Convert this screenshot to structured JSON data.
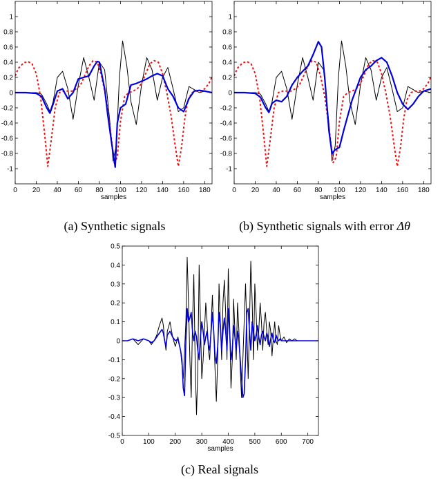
{
  "figure": {
    "panels": [
      {
        "id": "a",
        "caption": "(a) Synthetic signals"
      },
      {
        "id": "b",
        "caption_text": "(b) Synthetic signals with error ",
        "caption_symbol": "Δθ"
      },
      {
        "id": "c",
        "caption": "(c) Real signals"
      }
    ]
  },
  "colors": {
    "black": "#000000",
    "blue": "#0000dd",
    "red": "#ee1111"
  },
  "chart_data": [
    {
      "type": "line",
      "panel": "a",
      "xlabel": "samples",
      "ylabel": "",
      "xlim": [
        0,
        187
      ],
      "ylim": [
        -1.2,
        1.2
      ],
      "xticks": [
        0,
        20,
        40,
        60,
        80,
        100,
        120,
        140,
        160,
        180
      ],
      "yticks": [
        -1,
        -0.8,
        -0.6,
        -0.4,
        -0.2,
        0,
        0.2,
        0.4,
        0.6,
        0.8,
        1
      ],
      "series": [
        {
          "color": "black",
          "width": 1,
          "dash": "",
          "x": [
            0,
            10,
            20,
            25,
            30,
            33,
            36,
            40,
            45,
            50,
            55,
            60,
            65,
            70,
            75,
            80,
            85,
            90,
            93,
            96,
            99,
            102,
            106,
            110,
            115,
            120,
            125,
            130,
            135,
            140,
            145,
            150,
            155,
            160,
            165,
            170,
            175,
            180,
            187
          ],
          "y": [
            0,
            0,
            0,
            -0.02,
            -0.15,
            -0.25,
            -0.12,
            0.2,
            0.28,
            0.05,
            -0.35,
            0.1,
            0.46,
            0.2,
            -0.1,
            0.4,
            0.3,
            -0.4,
            -0.9,
            -0.7,
            0.2,
            0.68,
            0.35,
            -0.12,
            -0.42,
            0.1,
            0.46,
            0.3,
            -0.1,
            0.2,
            0.33,
            0.05,
            -0.25,
            -0.2,
            0.08,
            0.04,
            0,
            0.02,
            0
          ]
        },
        {
          "color": "red",
          "width": 2,
          "dash": "3,3",
          "x": [
            0,
            3,
            8,
            12,
            16,
            20,
            24,
            28,
            31,
            34,
            38,
            42,
            46,
            50,
            54,
            58,
            62,
            66,
            70,
            74,
            78,
            82,
            86,
            90,
            94,
            97,
            100,
            104,
            108,
            112,
            116,
            120,
            124,
            128,
            132,
            136,
            140,
            144,
            148,
            152,
            155,
            158,
            161,
            164,
            168,
            172,
            176,
            180,
            184,
            187
          ],
          "y": [
            0.22,
            0.32,
            0.39,
            0.41,
            0.38,
            0.25,
            -0.05,
            -0.55,
            -0.97,
            -0.65,
            -0.2,
            0,
            0.02,
            0.02,
            0.02,
            0.05,
            0.1,
            0.22,
            0.35,
            0.42,
            0.4,
            0.22,
            -0.05,
            -0.45,
            -0.92,
            -0.85,
            -0.38,
            -0.05,
            0,
            0.02,
            0.05,
            0.12,
            0.25,
            0.38,
            0.42,
            0.4,
            0.25,
            0,
            -0.3,
            -0.7,
            -0.97,
            -0.72,
            -0.35,
            -0.1,
            0,
            0.02,
            0.02,
            0.05,
            0.12,
            0.21
          ]
        },
        {
          "color": "blue",
          "width": 2.2,
          "dash": "",
          "x": [
            0,
            10,
            20,
            25,
            30,
            33,
            36,
            40,
            45,
            50,
            55,
            60,
            65,
            70,
            75,
            78,
            80,
            85,
            88,
            92,
            95,
            97,
            100,
            105,
            110,
            115,
            120,
            125,
            130,
            135,
            140,
            145,
            150,
            155,
            160,
            165,
            170,
            175,
            180,
            187
          ],
          "y": [
            0,
            0,
            -0.01,
            -0.05,
            -0.2,
            -0.27,
            -0.15,
            0.02,
            0.05,
            -0.08,
            0,
            0.18,
            0.2,
            0.22,
            0.35,
            0.41,
            0.4,
            0.05,
            -0.3,
            -0.7,
            -0.98,
            -0.4,
            -0.2,
            -0.15,
            0.1,
            0.12,
            0.15,
            0.18,
            0.22,
            0.25,
            0.22,
            0.05,
            -0.05,
            -0.2,
            -0.25,
            -0.08,
            0.02,
            0.03,
            0.02,
            0
          ]
        }
      ]
    },
    {
      "type": "line",
      "panel": "b",
      "xlabel": "samples",
      "ylabel": "",
      "xlim": [
        0,
        187
      ],
      "ylim": [
        -1.2,
        1.2
      ],
      "xticks": [
        0,
        20,
        40,
        60,
        80,
        100,
        120,
        140,
        160,
        180
      ],
      "yticks": [
        -1,
        -0.8,
        -0.6,
        -0.4,
        -0.2,
        0,
        0.2,
        0.4,
        0.6,
        0.8,
        1
      ],
      "series": [
        {
          "color": "black",
          "width": 1,
          "dash": "",
          "x": [
            0,
            10,
            20,
            25,
            30,
            33,
            36,
            40,
            45,
            50,
            55,
            60,
            65,
            70,
            75,
            80,
            85,
            90,
            93,
            96,
            99,
            102,
            106,
            110,
            115,
            120,
            125,
            130,
            135,
            140,
            145,
            150,
            155,
            160,
            165,
            170,
            175,
            180,
            187
          ],
          "y": [
            0,
            0,
            0,
            -0.02,
            -0.15,
            -0.25,
            -0.12,
            0.2,
            0.28,
            0.05,
            -0.35,
            0.1,
            0.46,
            0.2,
            -0.1,
            0.4,
            0.3,
            -0.4,
            -0.9,
            -0.7,
            0.2,
            0.68,
            0.35,
            -0.12,
            -0.42,
            0.1,
            0.46,
            0.3,
            -0.1,
            0.2,
            0.33,
            0.05,
            -0.25,
            -0.2,
            0.08,
            0.04,
            0,
            0.02,
            0
          ]
        },
        {
          "color": "red",
          "width": 2,
          "dash": "3,3",
          "x": [
            0,
            3,
            8,
            12,
            16,
            20,
            24,
            28,
            31,
            34,
            38,
            42,
            46,
            50,
            54,
            58,
            62,
            66,
            70,
            74,
            78,
            82,
            86,
            90,
            94,
            97,
            100,
            104,
            108,
            112,
            116,
            120,
            124,
            128,
            132,
            136,
            140,
            144,
            148,
            152,
            155,
            158,
            161,
            164,
            168,
            172,
            176,
            180,
            184,
            187
          ],
          "y": [
            0.22,
            0.32,
            0.39,
            0.41,
            0.38,
            0.25,
            -0.05,
            -0.55,
            -0.97,
            -0.65,
            -0.2,
            0,
            0.02,
            0.02,
            0.02,
            0.05,
            0.1,
            0.22,
            0.35,
            0.42,
            0.4,
            0.22,
            -0.05,
            -0.45,
            -0.92,
            -0.85,
            -0.38,
            -0.05,
            0,
            0.02,
            0.05,
            0.12,
            0.25,
            0.38,
            0.42,
            0.4,
            0.25,
            0,
            -0.3,
            -0.7,
            -0.97,
            -0.72,
            -0.35,
            -0.1,
            0,
            0.02,
            0.02,
            0.05,
            0.12,
            0.21
          ]
        },
        {
          "color": "blue",
          "width": 2.2,
          "dash": "",
          "x": [
            0,
            10,
            20,
            25,
            30,
            33,
            36,
            40,
            45,
            50,
            55,
            60,
            65,
            70,
            75,
            80,
            83,
            86,
            90,
            93,
            96,
            100,
            104,
            108,
            112,
            116,
            120,
            125,
            130,
            135,
            140,
            145,
            150,
            155,
            160,
            165,
            170,
            175,
            180,
            187
          ],
          "y": [
            0,
            0,
            -0.01,
            -0.06,
            -0.2,
            -0.26,
            -0.14,
            -0.1,
            -0.12,
            -0.05,
            0.1,
            0.2,
            0.28,
            0.35,
            0.5,
            0.67,
            0.6,
            0.2,
            -0.5,
            -0.8,
            -0.75,
            -0.72,
            -0.5,
            -0.3,
            -0.1,
            0.05,
            0.2,
            0.3,
            0.35,
            0.42,
            0.46,
            0.4,
            0.22,
            0,
            -0.15,
            -0.22,
            -0.15,
            -0.05,
            0.02,
            0.05
          ]
        }
      ]
    },
    {
      "type": "line",
      "panel": "c",
      "xlabel": "samples",
      "ylabel": "",
      "xlim": [
        0,
        740
      ],
      "ylim": [
        -0.5,
        0.5
      ],
      "xticks": [
        0,
        100,
        200,
        300,
        400,
        500,
        600,
        700
      ],
      "yticks": [
        -0.5,
        -0.4,
        -0.3,
        -0.2,
        -0.1,
        0,
        0.1,
        0.2,
        0.3,
        0.4,
        0.5
      ],
      "series": [
        {
          "color": "black",
          "width": 1,
          "dash": "",
          "x": [
            0,
            20,
            40,
            60,
            80,
            100,
            110,
            120,
            130,
            140,
            150,
            155,
            160,
            165,
            170,
            180,
            190,
            200,
            210,
            220,
            230,
            240,
            245,
            250,
            255,
            260,
            265,
            270,
            275,
            280,
            285,
            290,
            295,
            300,
            305,
            310,
            315,
            320,
            325,
            330,
            335,
            340,
            345,
            350,
            355,
            360,
            365,
            370,
            375,
            380,
            385,
            390,
            395,
            400,
            405,
            410,
            415,
            420,
            425,
            430,
            435,
            440,
            445,
            450,
            455,
            460,
            465,
            470,
            475,
            480,
            485,
            490,
            495,
            500,
            505,
            510,
            515,
            520,
            525,
            530,
            535,
            540,
            545,
            550,
            555,
            560,
            565,
            570,
            575,
            580,
            585,
            590,
            595,
            600,
            610,
            620,
            630,
            640,
            650,
            660,
            670,
            680,
            690,
            700,
            710,
            720,
            730,
            740
          ],
          "y": [
            0,
            0,
            0.01,
            -0.02,
            0.01,
            0,
            -0.02,
            0,
            0.03,
            0.08,
            0.12,
            0.08,
            0,
            -0.05,
            0.05,
            0.1,
            0.02,
            -0.03,
            0.02,
            -0.05,
            -0.2,
            0.1,
            0.44,
            0.2,
            -0.1,
            -0.3,
            0.1,
            0.35,
            -0.1,
            -0.39,
            -0.15,
            0.4,
            0.1,
            -0.2,
            -0.1,
            0.05,
            0.2,
            0.1,
            -0.05,
            -0.1,
            0.08,
            0.24,
            0.05,
            -0.15,
            -0.32,
            -0.1,
            0.3,
            0.1,
            -0.1,
            0.2,
            0.32,
            0.15,
            -0.1,
            0.38,
            0.1,
            -0.25,
            -0.1,
            0.22,
            0.05,
            -0.1,
            0.2,
            0.05,
            -0.15,
            -0.3,
            -0.1,
            0.1,
            0.3,
            0.05,
            -0.2,
            0.1,
            0.42,
            0.2,
            -0.1,
            0.3,
            0.15,
            -0.05,
            0.05,
            0.2,
            0.1,
            -0.05,
            0.1,
            0.15,
            0.05,
            -0.02,
            0.1,
            0.05,
            -0.08,
            0.02,
            0.1,
            0,
            -0.02,
            0.08,
            0.03,
            0,
            0.02,
            -0.01,
            0.01,
            0,
            0.01,
            0,
            0,
            0,
            0,
            0,
            0,
            0,
            0,
            0
          ]
        },
        {
          "color": "blue",
          "width": 1.6,
          "dash": "",
          "x": [
            0,
            20,
            40,
            60,
            80,
            100,
            110,
            120,
            130,
            140,
            150,
            155,
            160,
            165,
            170,
            180,
            190,
            200,
            210,
            220,
            225,
            230,
            235,
            240,
            245,
            250,
            255,
            260,
            265,
            270,
            275,
            280,
            285,
            290,
            295,
            300,
            305,
            310,
            315,
            320,
            325,
            330,
            335,
            340,
            345,
            350,
            355,
            360,
            365,
            370,
            375,
            380,
            385,
            390,
            395,
            400,
            405,
            410,
            415,
            420,
            425,
            430,
            435,
            440,
            445,
            450,
            455,
            460,
            465,
            470,
            475,
            480,
            485,
            490,
            495,
            500,
            505,
            510,
            515,
            520,
            525,
            530,
            535,
            540,
            545,
            550,
            555,
            560,
            565,
            570,
            575,
            580,
            585,
            590,
            595,
            600,
            610,
            620,
            630,
            640,
            650,
            660,
            670,
            680,
            690,
            700,
            710,
            720,
            730,
            740
          ],
          "y": [
            0,
            0,
            0.01,
            0,
            0.01,
            0,
            -0.01,
            0,
            0.02,
            0.04,
            0.06,
            0.04,
            0,
            -0.03,
            0.03,
            0.05,
            0.02,
            0,
            0.01,
            -0.05,
            -0.1,
            -0.25,
            -0.29,
            0,
            0.17,
            0.1,
            0.12,
            0.15,
            0.05,
            0,
            0.05,
            0.02,
            -0.05,
            -0.1,
            0.02,
            0.1,
            0.05,
            -0.02,
            0.02,
            0.05,
            -0.02,
            -0.05,
            0.05,
            0.15,
            0.05,
            -0.08,
            -0.12,
            -0.03,
            0.15,
            0.08,
            -0.05,
            0.05,
            0.12,
            0.05,
            -0.05,
            0.17,
            0.05,
            -0.1,
            -0.05,
            0.08,
            0.02,
            -0.05,
            0.05,
            0,
            -0.1,
            -0.2,
            -0.3,
            -0.28,
            -0.1,
            0.15,
            0.17,
            0.05,
            -0.05,
            0.1,
            0.05,
            0,
            0.03,
            0.08,
            0.02,
            -0.02,
            0.03,
            0.05,
            0.02,
            0,
            0.04,
            0.02,
            -0.03,
            0.01,
            0.04,
            0,
            -0.01,
            0.03,
            0.01,
            0,
            0.01,
            0,
            0,
            0,
            0,
            0,
            0,
            0,
            0,
            0,
            0,
            0,
            0,
            0,
            0,
            0
          ]
        }
      ]
    }
  ]
}
